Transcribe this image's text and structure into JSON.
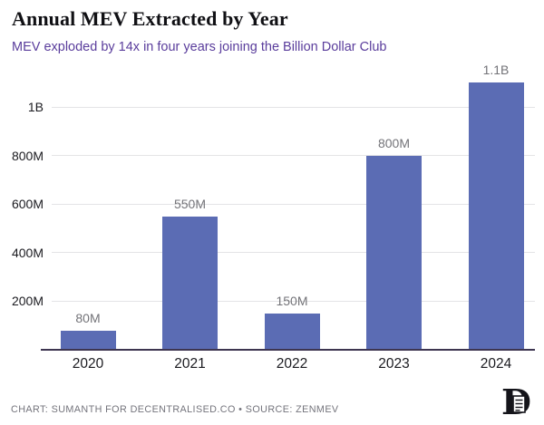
{
  "header": {
    "title": "Annual MEV Extracted by Year",
    "subtitle": "MEV exploded by 14x in four years joining the Billion Dollar Club"
  },
  "chart_data": {
    "type": "bar",
    "title": "Annual MEV Extracted by Year",
    "subtitle": "MEV exploded by 14x in four years joining the Billion Dollar Club",
    "categories": [
      "2020",
      "2021",
      "2022",
      "2023",
      "2024"
    ],
    "values": [
      80,
      550,
      150,
      800,
      1100
    ],
    "value_unit": "millions USD",
    "bar_labels": [
      "80M",
      "550M",
      "150M",
      "800M",
      "1.1B"
    ],
    "y_ticks": [
      {
        "label": "200M",
        "value": 200
      },
      {
        "label": "400M",
        "value": 400
      },
      {
        "label": "600M",
        "value": 600
      },
      {
        "label": "800M",
        "value": 800
      },
      {
        "label": "1B",
        "value": 1000
      }
    ],
    "ylim": [
      0,
      1150
    ],
    "xlabel": "",
    "ylabel": "",
    "grid": "horizontal",
    "legend": "none"
  },
  "colors": {
    "bar": "#5b6cb4",
    "subtitle": "#5a3d9c",
    "gridline": "#e4e4e6",
    "axis": "#3d3550",
    "value_label": "#737378",
    "tick_label": "#1b1b20",
    "footer": "#74747c"
  },
  "footer": {
    "credit": "CHART: SUMANTH FOR DECENTRALISED.CO • SOURCE: ZENMEV",
    "logo": "decentralised-d-logo"
  }
}
